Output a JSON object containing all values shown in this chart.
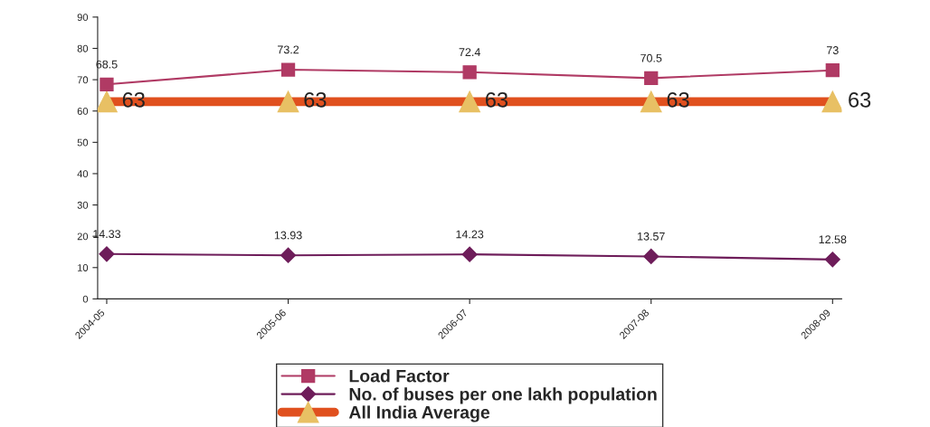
{
  "chart_data": {
    "type": "line",
    "categories": [
      "2004-05",
      "2005-06",
      "2006-07",
      "2007-08",
      "2008-09"
    ],
    "series": [
      {
        "name": "Load Factor",
        "color": "#b03a64",
        "marker": "square",
        "values": [
          68.5,
          73.2,
          72.4,
          70.5,
          73
        ]
      },
      {
        "name": "No. of buses per one lakh population",
        "color": "#6e1d5a",
        "marker": "diamond",
        "values": [
          14.33,
          13.93,
          14.23,
          13.57,
          12.58
        ]
      },
      {
        "name": "All India Average",
        "color": "#e0501e",
        "marker": "triangle",
        "values": [
          63,
          63,
          63,
          63,
          63
        ]
      }
    ],
    "ylim": [
      0,
      90
    ],
    "yticks": [
      0,
      10,
      20,
      30,
      40,
      50,
      60,
      70,
      80,
      90
    ],
    "grid": false,
    "legend": "bottom",
    "data_labels": true
  }
}
